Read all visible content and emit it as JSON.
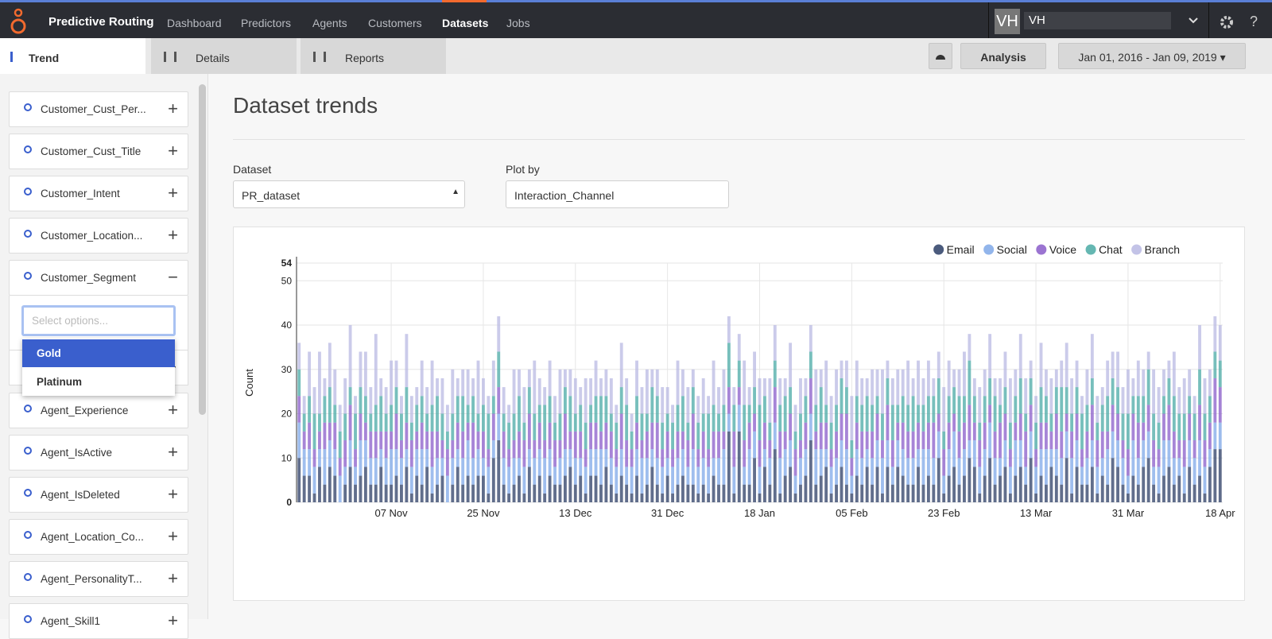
{
  "app": {
    "brand": "Predictive Routing",
    "nav": [
      "Dashboard",
      "Predictors",
      "Agents",
      "Customers",
      "Datasets",
      "Jobs"
    ],
    "active_nav": "Datasets",
    "user_initials": "VH",
    "user_name": "VH"
  },
  "tabs": [
    "Trend",
    "Details",
    "Reports"
  ],
  "toolbar": {
    "analysis": "Analysis",
    "date_range": "Jan 01, 2016 - Jan 09, 2019"
  },
  "sidebar": {
    "items": [
      "Customer_Cust_Per...",
      "Customer_Cust_Title",
      "Customer_Intent",
      "Customer_Location...",
      "Customer_Segment",
      "Agent_Experience",
      "Agent_IsActive",
      "Agent_IsDeleted",
      "Agent_Location_Co...",
      "Agent_PersonalityT...",
      "Agent_Skill1"
    ],
    "search_placeholder": "Select options...",
    "options": [
      "Gold",
      "Platinum"
    ]
  },
  "page": {
    "title": "Dataset trends",
    "dataset_label": "Dataset",
    "dataset_value": "PR_dataset",
    "plot_by_label": "Plot by",
    "plot_by_value": "Interaction_Channel"
  },
  "chart_data": {
    "type": "stacked_bar",
    "y_label": "Count",
    "ylim": [
      0,
      54
    ],
    "yticks": [
      0,
      10,
      20,
      30,
      40,
      50,
      54
    ],
    "grid": true,
    "legend": "top-right",
    "categories": [
      null,
      null,
      null,
      null,
      null,
      null,
      null,
      null,
      null,
      null,
      null,
      null,
      null,
      null,
      null,
      null,
      null,
      null,
      "07 Nov",
      null,
      null,
      null,
      null,
      null,
      null,
      null,
      null,
      null,
      null,
      null,
      null,
      null,
      null,
      null,
      null,
      null,
      "25 Nov",
      null,
      null,
      null,
      null,
      null,
      null,
      null,
      null,
      null,
      null,
      null,
      null,
      null,
      null,
      null,
      null,
      null,
      "13 Dec",
      null,
      null,
      null,
      null,
      null,
      null,
      null,
      null,
      null,
      null,
      null,
      null,
      null,
      null,
      null,
      null,
      null,
      "31 Dec",
      null,
      null,
      null,
      null,
      null,
      null,
      null,
      null,
      null,
      null,
      null,
      null,
      null,
      null,
      null,
      null,
      null,
      "18 Jan",
      null,
      null,
      null,
      null,
      null,
      null,
      null,
      null,
      null,
      null,
      null,
      null,
      null,
      null,
      null,
      null,
      null,
      "05 Feb",
      null,
      null,
      null,
      null,
      null,
      null,
      null,
      null,
      null,
      null,
      null,
      null,
      null,
      null,
      null,
      null,
      null,
      "23 Feb",
      null,
      null,
      null,
      null,
      null,
      null,
      null,
      null,
      null,
      null,
      null,
      null,
      null,
      null,
      null,
      null,
      null,
      "13 Mar",
      null,
      null,
      null,
      null,
      null,
      null,
      null,
      null,
      null,
      null,
      null,
      null,
      null,
      null,
      null,
      null,
      null,
      "31 Mar",
      null,
      null,
      null,
      null,
      null,
      null,
      null,
      null,
      null,
      null,
      null,
      null,
      null,
      null,
      null,
      null,
      null,
      "18 Apr"
    ],
    "series": [
      {
        "name": "Email",
        "color": "#2c3e66",
        "values": [
          10,
          6,
          6,
          2,
          8,
          4,
          8,
          6,
          0,
          4,
          8,
          4,
          6,
          8,
          4,
          4,
          8,
          4,
          4,
          6,
          4,
          8,
          2,
          6,
          4,
          8,
          2,
          4,
          6,
          0,
          4,
          8,
          4,
          6,
          4,
          6,
          6,
          2,
          10,
          14,
          4,
          2,
          4,
          6,
          2,
          8,
          4,
          6,
          2,
          6,
          4,
          4,
          6,
          8,
          4,
          6,
          2,
          6,
          6,
          4,
          8,
          4,
          2,
          6,
          4,
          2,
          6,
          2,
          4,
          8,
          4,
          2,
          6,
          2,
          4,
          6,
          4,
          4,
          2,
          4,
          2,
          6,
          4,
          4,
          16,
          2,
          16,
          4,
          4,
          10,
          2,
          8,
          4,
          12,
          2,
          6,
          8,
          2,
          4,
          6,
          14,
          4,
          6,
          8,
          2,
          4,
          8,
          4,
          2,
          6,
          4,
          8,
          4,
          8,
          2,
          8,
          4,
          8,
          6,
          4,
          4,
          8,
          4,
          6,
          4,
          10,
          2,
          6,
          8,
          4,
          6,
          10,
          8,
          2,
          6,
          10,
          4,
          6,
          8,
          2,
          6,
          8,
          4,
          10,
          2,
          6,
          4,
          8,
          6,
          4,
          10,
          2,
          8,
          4,
          4,
          8,
          2,
          6,
          4,
          10,
          8,
          4,
          2,
          6,
          4,
          8,
          10,
          4,
          2,
          6,
          8,
          4,
          6,
          2,
          8,
          4,
          6,
          2,
          8,
          12,
          12
        ]
      },
      {
        "name": "Social",
        "color": "#7fa8e8",
        "values": [
          8,
          6,
          6,
          6,
          4,
          8,
          6,
          6,
          6,
          4,
          6,
          4,
          8,
          6,
          6,
          6,
          4,
          6,
          8,
          6,
          6,
          4,
          6,
          6,
          8,
          4,
          6,
          6,
          4,
          6,
          6,
          4,
          6,
          8,
          6,
          6,
          4,
          6,
          4,
          6,
          6,
          6,
          6,
          4,
          6,
          4,
          6,
          6,
          8,
          6,
          4,
          6,
          6,
          4,
          6,
          4,
          6,
          6,
          6,
          8,
          4,
          6,
          6,
          6,
          4,
          6,
          6,
          8,
          6,
          4,
          6,
          6,
          4,
          6,
          6,
          6,
          4,
          8,
          6,
          6,
          6,
          4,
          6,
          8,
          4,
          6,
          6,
          4,
          8,
          6,
          6,
          4,
          6,
          6,
          8,
          6,
          6,
          4,
          6,
          6,
          6,
          8,
          6,
          4,
          6,
          6,
          6,
          8,
          4,
          6,
          6,
          4,
          6,
          6,
          8,
          6,
          4,
          6,
          6,
          6,
          6,
          4,
          8,
          6,
          6,
          6,
          4,
          6,
          8,
          6,
          6,
          4,
          6,
          6,
          6,
          8,
          6,
          4,
          6,
          6,
          8,
          6,
          4,
          6,
          6,
          6,
          8,
          4,
          6,
          6,
          6,
          8,
          6,
          4,
          6,
          6,
          6,
          4,
          8,
          6,
          6,
          6,
          4,
          8,
          6,
          6,
          6,
          4,
          6,
          8,
          6,
          6,
          4,
          6,
          6,
          6,
          8,
          6,
          4,
          6,
          6
        ]
      },
      {
        "name": "Voice",
        "color": "#8a5cc9",
        "values": [
          6,
          4,
          6,
          4,
          4,
          6,
          4,
          6,
          4,
          6,
          8,
          4,
          6,
          4,
          6,
          6,
          4,
          6,
          4,
          8,
          4,
          6,
          6,
          4,
          6,
          4,
          8,
          6,
          4,
          6,
          4,
          6,
          6,
          4,
          8,
          4,
          6,
          4,
          6,
          6,
          6,
          4,
          4,
          6,
          6,
          8,
          4,
          6,
          4,
          6,
          6,
          4,
          8,
          4,
          6,
          6,
          4,
          6,
          6,
          4,
          6,
          6,
          4,
          8,
          6,
          4,
          6,
          4,
          6,
          6,
          8,
          4,
          6,
          4,
          6,
          4,
          6,
          8,
          4,
          6,
          4,
          6,
          6,
          4,
          6,
          8,
          4,
          6,
          6,
          4,
          6,
          6,
          4,
          8,
          6,
          4,
          6,
          6,
          4,
          6,
          8,
          4,
          6,
          6,
          4,
          6,
          6,
          8,
          4,
          6,
          6,
          4,
          6,
          6,
          4,
          8,
          6,
          4,
          6,
          6,
          6,
          6,
          4,
          6,
          8,
          4,
          6,
          6,
          4,
          6,
          6,
          8,
          4,
          6,
          6,
          4,
          6,
          8,
          6,
          4,
          4,
          6,
          8,
          6,
          4,
          6,
          6,
          4,
          8,
          6,
          4,
          6,
          6,
          4,
          6,
          8,
          6,
          6,
          4,
          6,
          6,
          4,
          6,
          6,
          8,
          4,
          6,
          6,
          4,
          6,
          8,
          6,
          4,
          6,
          6,
          4,
          8,
          6,
          6,
          10,
          8
        ]
      },
      {
        "name": "Chat",
        "color": "#4aaaa5",
        "values": [
          6,
          4,
          6,
          8,
          4,
          6,
          8,
          4,
          6,
          6,
          4,
          8,
          6,
          6,
          4,
          6,
          8,
          4,
          6,
          6,
          6,
          8,
          4,
          6,
          6,
          4,
          6,
          8,
          6,
          4,
          6,
          6,
          8,
          4,
          6,
          4,
          6,
          8,
          4,
          8,
          4,
          6,
          6,
          8,
          4,
          6,
          6,
          4,
          8,
          6,
          4,
          6,
          6,
          8,
          4,
          6,
          6,
          4,
          6,
          8,
          6,
          4,
          6,
          6,
          8,
          4,
          6,
          6,
          4,
          8,
          6,
          6,
          4,
          6,
          6,
          8,
          4,
          6,
          6,
          4,
          8,
          6,
          4,
          6,
          10,
          6,
          6,
          8,
          4,
          6,
          8,
          6,
          4,
          6,
          6,
          8,
          6,
          4,
          6,
          6,
          6,
          6,
          8,
          4,
          6,
          6,
          8,
          6,
          4,
          6,
          6,
          8,
          6,
          4,
          6,
          6,
          8,
          4,
          6,
          6,
          8,
          4,
          6,
          6,
          6,
          8,
          4,
          6,
          6,
          8,
          6,
          10,
          6,
          4,
          6,
          6,
          8,
          4,
          6,
          6,
          6,
          8,
          4,
          6,
          6,
          8,
          6,
          4,
          6,
          10,
          6,
          4,
          6,
          8,
          6,
          6,
          4,
          6,
          8,
          6,
          6,
          6,
          8,
          4,
          6,
          6,
          8,
          6,
          6,
          4,
          6,
          8,
          6,
          6,
          4,
          6,
          8,
          6,
          6,
          6,
          6
        ]
      },
      {
        "name": "Branch",
        "color": "#b9b9e3",
        "values": [
          6,
          4,
          10,
          6,
          14,
          4,
          10,
          8,
          6,
          8,
          14,
          4,
          8,
          10,
          6,
          16,
          4,
          6,
          10,
          6,
          4,
          12,
          6,
          4,
          8,
          6,
          10,
          4,
          8,
          6,
          10,
          4,
          6,
          8,
          4,
          12,
          6,
          4,
          8,
          8,
          6,
          4,
          10,
          6,
          8,
          4,
          12,
          6,
          4,
          8,
          6,
          10,
          4,
          6,
          8,
          4,
          10,
          6,
          8,
          4,
          6,
          8,
          4,
          10,
          6,
          4,
          8,
          6,
          10,
          4,
          6,
          8,
          6,
          4,
          10,
          6,
          8,
          4,
          6,
          8,
          4,
          10,
          6,
          8,
          6,
          4,
          6,
          10,
          4,
          8,
          6,
          4,
          10,
          8,
          6,
          4,
          10,
          6,
          8,
          4,
          6,
          8,
          4,
          10,
          6,
          8,
          4,
          6,
          10,
          8,
          6,
          4,
          8,
          6,
          10,
          4,
          6,
          8,
          6,
          10,
          4,
          10,
          6,
          8,
          4,
          6,
          10,
          8,
          4,
          6,
          10,
          6,
          4,
          8,
          6,
          10,
          4,
          6,
          8,
          10,
          6,
          10,
          8,
          4,
          6,
          10,
          6,
          8,
          4,
          6,
          10,
          8,
          6,
          4,
          8,
          10,
          6,
          4,
          8,
          6,
          8,
          6,
          10,
          4,
          8,
          6,
          4,
          10,
          8,
          6,
          4,
          10,
          6,
          8,
          6,
          4,
          10,
          8,
          6,
          8,
          8
        ]
      }
    ]
  }
}
